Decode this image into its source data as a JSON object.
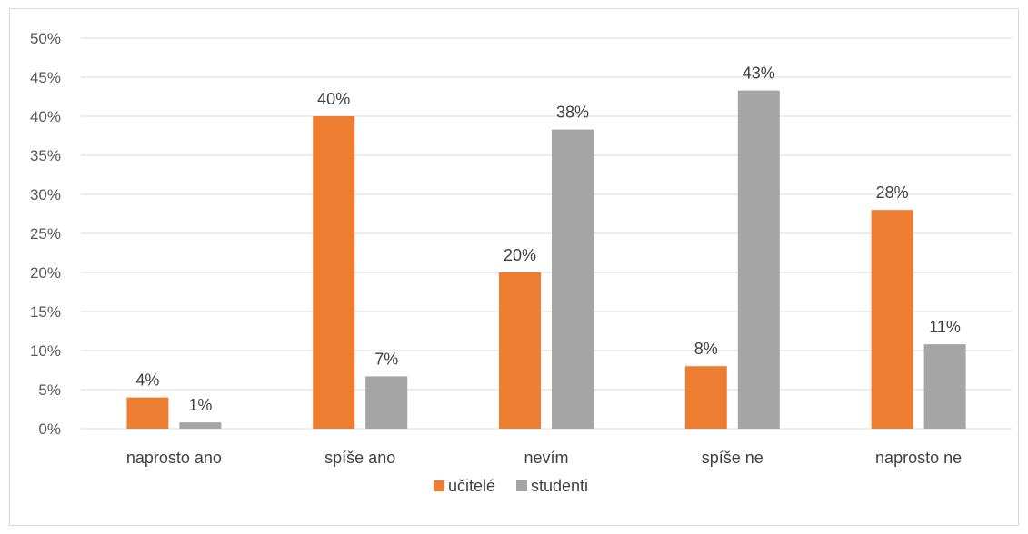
{
  "chart_data": {
    "type": "bar",
    "categories": [
      "naprosto ano",
      "spíše ano",
      "nevím",
      "spíše ne",
      "naprosto ne"
    ],
    "series": [
      {
        "name": "učitelé",
        "color": "#ed7d31",
        "values": [
          4,
          40,
          20,
          8,
          28
        ],
        "labels": [
          "4%",
          "40%",
          "20%",
          "8%",
          "28%"
        ]
      },
      {
        "name": "studenti",
        "color": "#a5a5a5",
        "values": [
          0.8,
          6.7,
          38.3,
          43.3,
          10.8
        ],
        "labels": [
          "1%",
          "7%",
          "38%",
          "43%",
          "11%"
        ]
      }
    ],
    "ylim": [
      0,
      50
    ],
    "yticks": [
      0,
      5,
      10,
      15,
      20,
      25,
      30,
      35,
      40,
      45,
      50
    ],
    "ytick_labels": [
      "0%",
      "5%",
      "10%",
      "15%",
      "20%",
      "25%",
      "30%",
      "35%",
      "40%",
      "45%",
      "50%"
    ],
    "grid": true,
    "legend_position": "bottom",
    "title": "",
    "xlabel": "",
    "ylabel": ""
  }
}
